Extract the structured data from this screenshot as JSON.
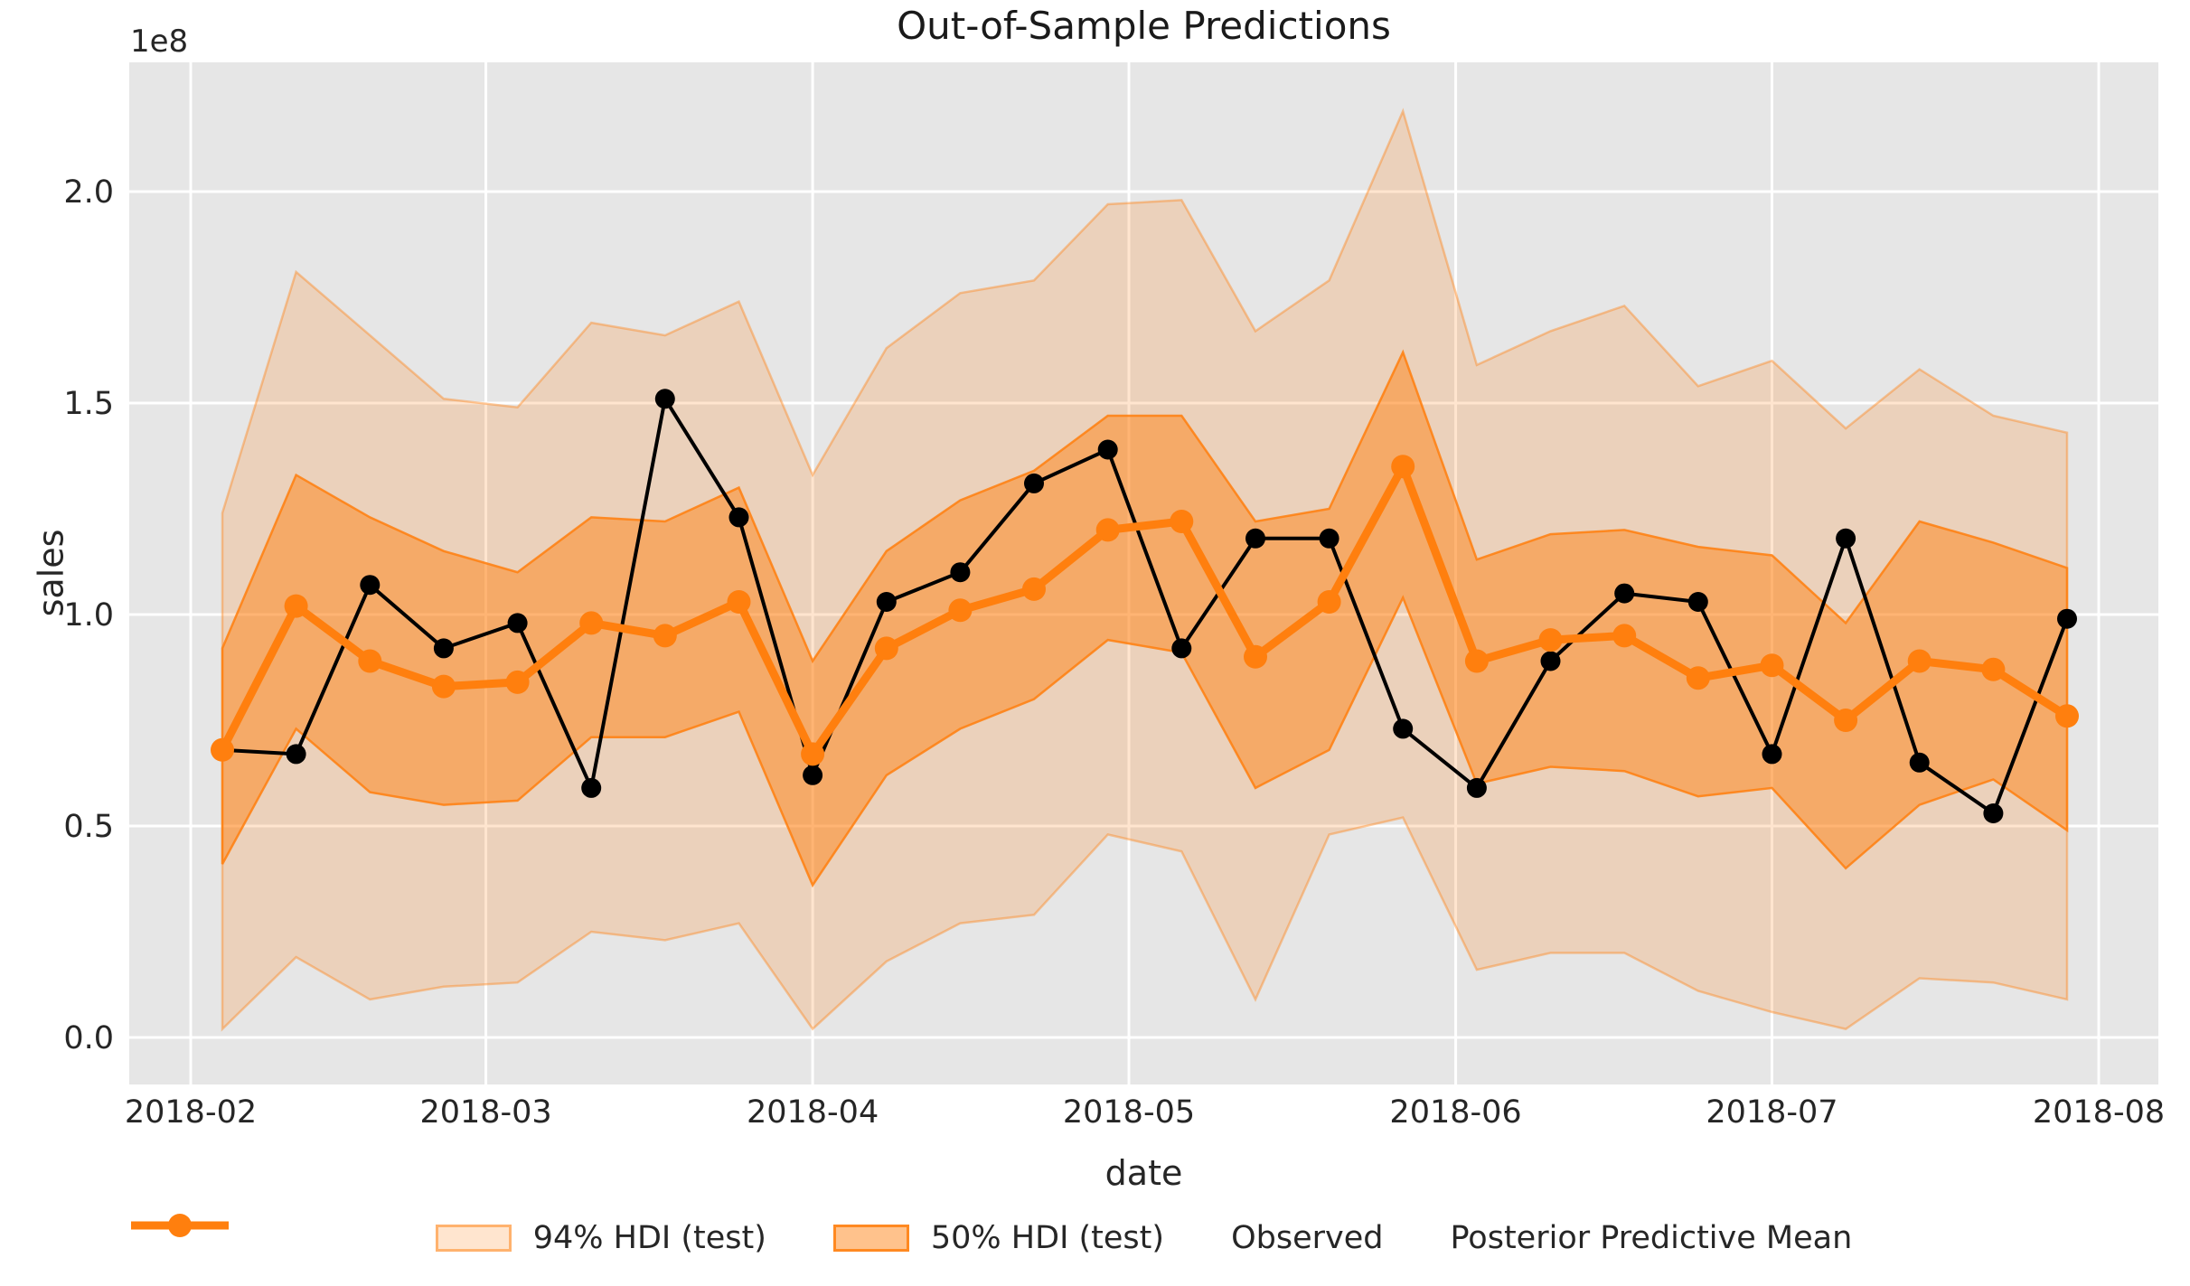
{
  "chart_data": {
    "type": "line",
    "title": "Out-of-Sample Predictions",
    "xlabel": "date",
    "ylabel": "sales",
    "y_offset_text": "1e8",
    "y_unit": "1e8",
    "grid": true,
    "background": "#e6e6e6",
    "gridline_color": "#ffffff",
    "ylim": [
      -0.11,
      2.31
    ],
    "x_tick_labels": [
      "2018-02",
      "2018-03",
      "2018-04",
      "2018-05",
      "2018-06",
      "2018-07",
      "2018-08"
    ],
    "y_tick_labels": [
      "0.0",
      "0.5",
      "1.0",
      "1.5",
      "2.0"
    ],
    "legend_position": "bottom-center",
    "x": [
      "2018-02-04",
      "2018-02-11",
      "2018-02-18",
      "2018-02-25",
      "2018-03-04",
      "2018-03-11",
      "2018-03-18",
      "2018-03-25",
      "2018-04-01",
      "2018-04-08",
      "2018-04-15",
      "2018-04-22",
      "2018-04-29",
      "2018-05-06",
      "2018-05-13",
      "2018-05-20",
      "2018-05-27",
      "2018-06-03",
      "2018-06-10",
      "2018-06-17",
      "2018-06-24",
      "2018-07-01",
      "2018-07-08",
      "2018-07-15",
      "2018-07-22",
      "2018-07-29"
    ],
    "series": [
      {
        "name": "Observed",
        "color": "#000000",
        "values": [
          0.68,
          0.67,
          1.07,
          0.92,
          0.98,
          0.59,
          1.51,
          1.23,
          0.62,
          1.03,
          1.1,
          1.31,
          1.39,
          0.92,
          1.18,
          1.18,
          0.73,
          0.59,
          0.89,
          1.05,
          1.03,
          0.67,
          1.18,
          0.65,
          0.53,
          0.99
        ]
      },
      {
        "name": "Posterior Predictive Mean",
        "color": "#ff7f0e",
        "values": [
          0.68,
          1.02,
          0.89,
          0.83,
          0.84,
          0.98,
          0.95,
          1.03,
          0.67,
          0.92,
          1.01,
          1.06,
          1.2,
          1.22,
          0.9,
          1.03,
          1.35,
          0.89,
          0.94,
          0.95,
          0.85,
          0.88,
          0.75,
          0.89,
          0.87,
          0.76
        ]
      }
    ],
    "bands": [
      {
        "name": "94% HDI (test)",
        "fill": "rgba(255,127,14,0.2)",
        "edge": "rgba(255,127,14,0.4)",
        "upper": [
          1.24,
          1.81,
          1.66,
          1.51,
          1.49,
          1.69,
          1.66,
          1.74,
          1.33,
          1.63,
          1.76,
          1.79,
          1.97,
          1.98,
          1.67,
          1.79,
          2.19,
          1.59,
          1.67,
          1.73,
          1.54,
          1.6,
          1.44,
          1.58,
          1.47,
          1.43
        ],
        "lower": [
          0.02,
          0.19,
          0.09,
          0.12,
          0.13,
          0.25,
          0.23,
          0.27,
          0.02,
          0.18,
          0.27,
          0.29,
          0.48,
          0.44,
          0.09,
          0.48,
          0.52,
          0.16,
          0.2,
          0.2,
          0.11,
          0.06,
          0.02,
          0.14,
          0.13,
          0.09
        ]
      },
      {
        "name": "50% HDI (test)",
        "fill": "rgba(255,127,14,0.48)",
        "edge": "rgba(255,127,14,0.85)",
        "upper": [
          0.92,
          1.33,
          1.23,
          1.15,
          1.1,
          1.23,
          1.22,
          1.3,
          0.89,
          1.15,
          1.27,
          1.34,
          1.47,
          1.47,
          1.22,
          1.25,
          1.62,
          1.13,
          1.19,
          1.2,
          1.16,
          1.14,
          0.98,
          1.22,
          1.17,
          1.11
        ],
        "lower": [
          0.41,
          0.73,
          0.58,
          0.55,
          0.56,
          0.71,
          0.71,
          0.77,
          0.36,
          0.62,
          0.73,
          0.8,
          0.94,
          0.91,
          0.59,
          0.68,
          1.04,
          0.6,
          0.64,
          0.63,
          0.57,
          0.59,
          0.4,
          0.55,
          0.61,
          0.49
        ]
      }
    ],
    "legend_items": [
      {
        "label": "94% HDI (test)",
        "kind": "patch-light"
      },
      {
        "label": "50% HDI (test)",
        "kind": "patch-dark"
      },
      {
        "label": "Observed",
        "kind": "line-marker",
        "color": "#000000"
      },
      {
        "label": "Posterior Predictive Mean",
        "kind": "line-marker",
        "color": "#ff7f0e"
      }
    ]
  }
}
